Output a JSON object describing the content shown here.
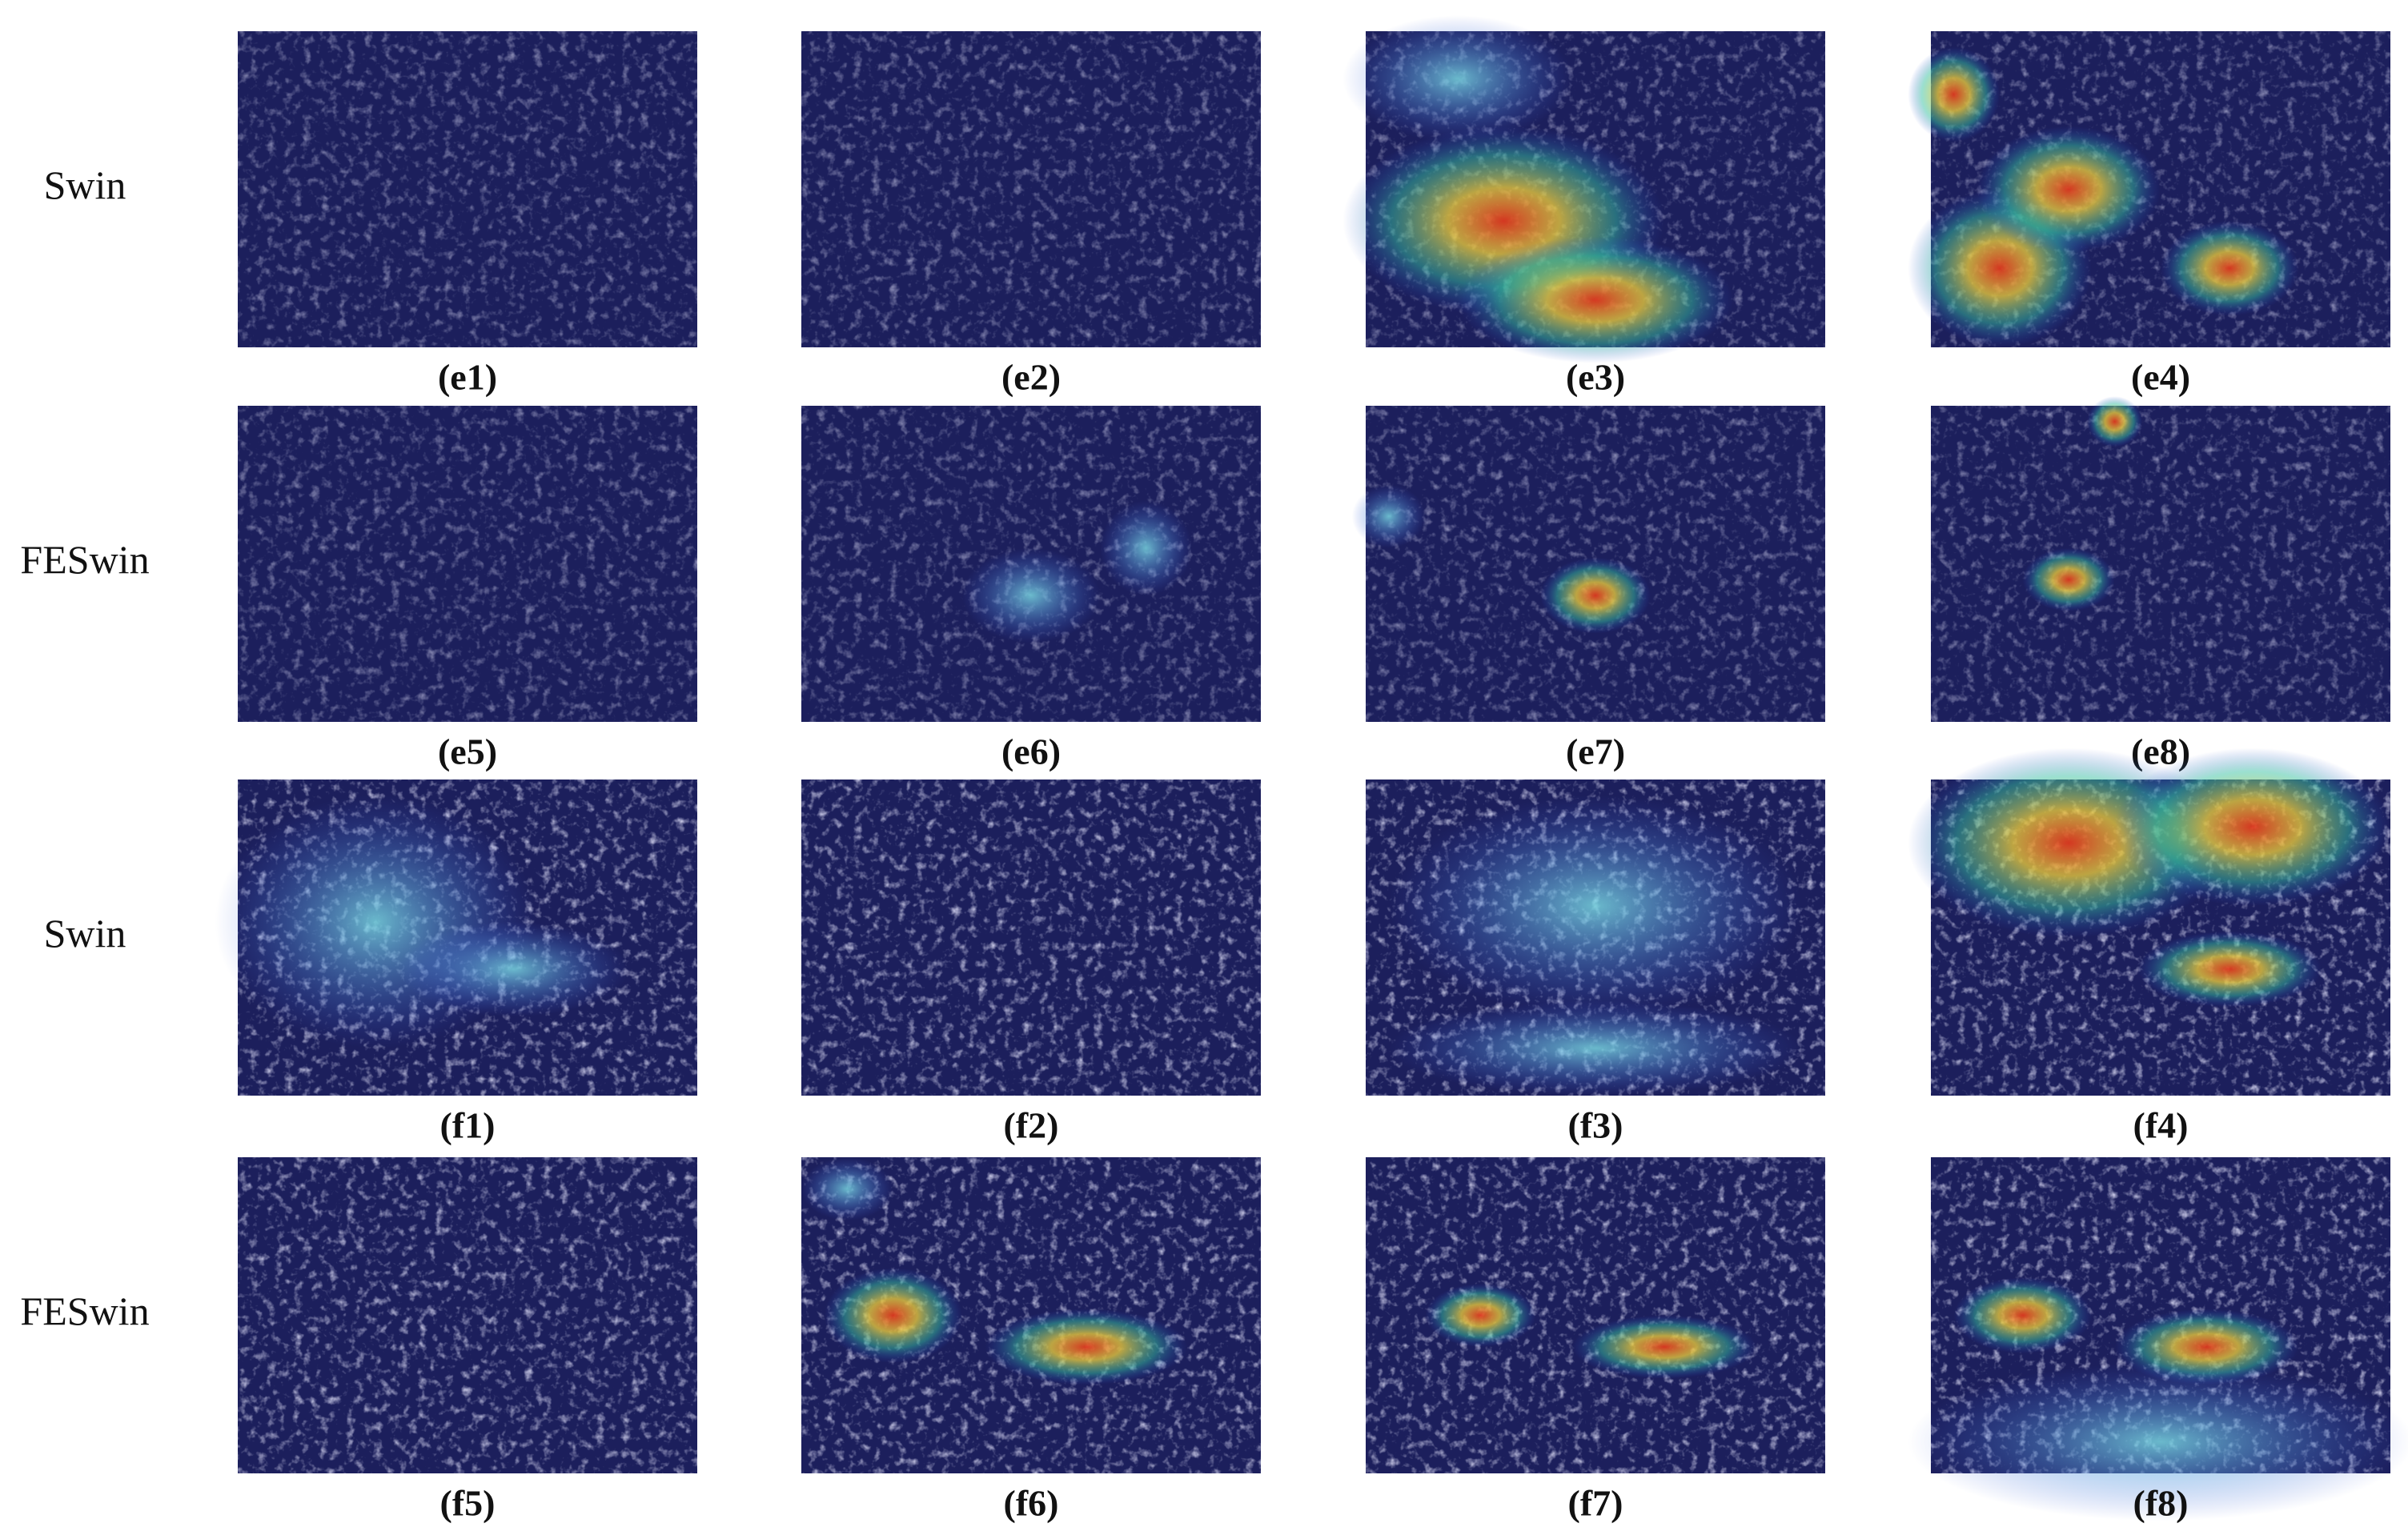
{
  "rows": [
    {
      "label": "Swin",
      "panels": [
        "(e1)",
        "(e2)",
        "(e3)",
        "(e4)"
      ]
    },
    {
      "label": "FESwin",
      "panels": [
        "(e5)",
        "(e6)",
        "(e7)",
        "(e8)"
      ]
    },
    {
      "label": "Swin",
      "panels": [
        "(f1)",
        "(f2)",
        "(f3)",
        "(f4)"
      ]
    },
    {
      "label": "FESwin",
      "panels": [
        "(f5)",
        "(f6)",
        "(f7)",
        "(f8)"
      ]
    }
  ]
}
